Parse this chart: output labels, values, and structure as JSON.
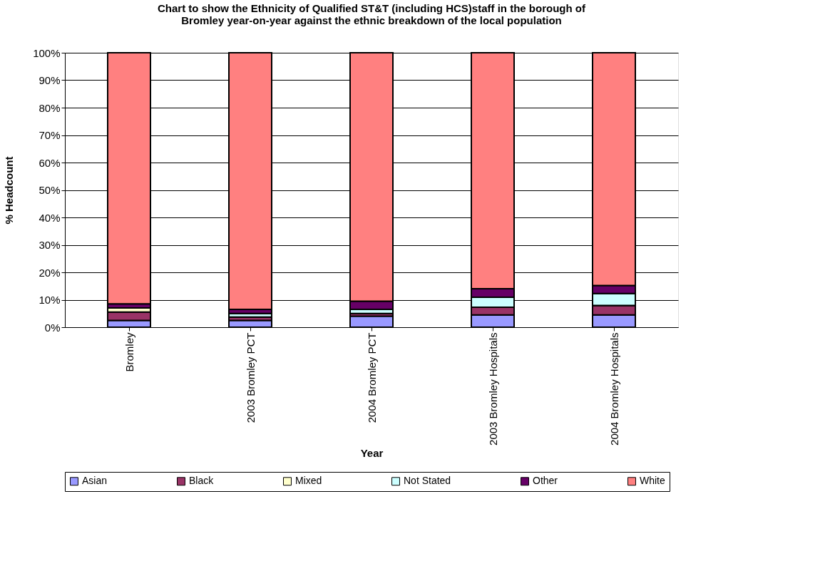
{
  "chart_data": {
    "type": "bar",
    "stacked": true,
    "title": [
      "Chart to show the Ethnicity of Qualified ST&T (including HCS)staff in the borough of",
      "Bromley year-on-year against the ethnic breakdown of the local population"
    ],
    "xlabel": "Year",
    "ylabel": "% Headcount",
    "categories": [
      "Bromley",
      "2003 Bromley PCT",
      "2004 Bromley PCT",
      "2003 Bromley Hospitals",
      "2004 Bromley Hospitals"
    ],
    "series": [
      {
        "name": "Asian",
        "color": "#9999ff",
        "values": [
          2.5,
          2.5,
          4,
          4.5,
          4.5
        ]
      },
      {
        "name": "Black",
        "color": "#993366",
        "values": [
          3,
          1.2,
          1,
          2.8,
          3.4
        ]
      },
      {
        "name": "Mixed",
        "color": "#ffffcc",
        "values": [
          1.5,
          0,
          0,
          0,
          0
        ]
      },
      {
        "name": "Not Stated",
        "color": "#ccffff",
        "values": [
          0,
          1.3,
          1.5,
          3.6,
          4.4
        ]
      },
      {
        "name": "Other",
        "color": "#660066",
        "values": [
          1.5,
          1.5,
          3,
          3.1,
          2.9
        ]
      },
      {
        "name": "White",
        "color": "#ff8080",
        "values": [
          91.5,
          93.5,
          90.5,
          86,
          84.8
        ]
      }
    ],
    "ylim": [
      0,
      100
    ],
    "yticks": [
      {
        "value": 0,
        "label": "0%"
      },
      {
        "value": 10,
        "label": "10%"
      },
      {
        "value": 20,
        "label": "20%"
      },
      {
        "value": 30,
        "label": "30%"
      },
      {
        "value": 40,
        "label": "40%"
      },
      {
        "value": 50,
        "label": "50%"
      },
      {
        "value": 60,
        "label": "60%"
      },
      {
        "value": 70,
        "label": "70%"
      },
      {
        "value": 80,
        "label": "80%"
      },
      {
        "value": 90,
        "label": "90%"
      },
      {
        "value": 100,
        "label": "100%"
      }
    ],
    "grid": "y",
    "legend": "bottom"
  }
}
